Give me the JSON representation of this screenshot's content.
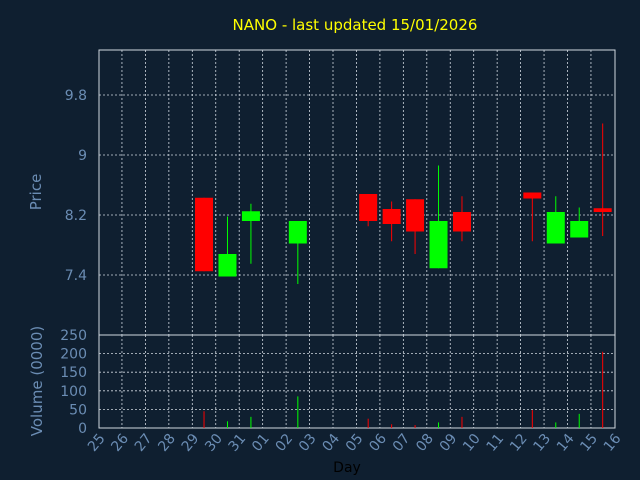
{
  "chart_data": {
    "type": "candlestick",
    "title": "NANO - last updated 15/01/2026",
    "xlabel": "Day",
    "ylabel": "Price",
    "y2label": "Volume (0000)",
    "x_ticks": [
      "25",
      "26",
      "27",
      "28",
      "29",
      "30",
      "31",
      "01",
      "02",
      "03",
      "04",
      "05",
      "06",
      "07",
      "08",
      "09",
      "10",
      "11",
      "12",
      "13",
      "14",
      "15",
      "16"
    ],
    "price_ticks": [
      7.4,
      8.2,
      9,
      9.8
    ],
    "price_tick_labels": [
      "7.4",
      "8.2",
      "9",
      "9.8"
    ],
    "ylim": [
      6.6,
      10.4
    ],
    "volume_ticks": [
      0,
      50,
      100,
      150,
      200,
      250
    ],
    "volume_tick_labels": [
      "0",
      "50",
      "100",
      "150",
      "200",
      "250"
    ],
    "volume_ylim": [
      0,
      250
    ],
    "grid": true,
    "colors": {
      "background": "#0f1f30",
      "text": "#6b8db4",
      "title": "#ffff00",
      "up": "#00ff00",
      "down": "#ff0000",
      "grid": "#d0d8e0"
    },
    "candles": [
      {
        "day": "29",
        "open": 8.43,
        "high": 8.43,
        "low": 7.45,
        "close": 7.45,
        "volume": 45
      },
      {
        "day": "30",
        "open": 7.38,
        "high": 8.18,
        "low": 7.38,
        "close": 7.68,
        "volume": 18
      },
      {
        "day": "31",
        "open": 8.12,
        "high": 8.35,
        "low": 7.55,
        "close": 8.25,
        "volume": 30
      },
      {
        "day": "02",
        "open": 7.82,
        "high": 8.12,
        "low": 7.28,
        "close": 8.12,
        "volume": 85
      },
      {
        "day": "05",
        "open": 8.48,
        "high": 8.48,
        "low": 8.05,
        "close": 8.12,
        "volume": 25
      },
      {
        "day": "06",
        "open": 8.28,
        "high": 8.38,
        "low": 7.85,
        "close": 8.08,
        "volume": 10
      },
      {
        "day": "07",
        "open": 8.41,
        "high": 8.41,
        "low": 7.68,
        "close": 7.98,
        "volume": 8
      },
      {
        "day": "08",
        "open": 7.49,
        "high": 8.86,
        "low": 7.49,
        "close": 8.12,
        "volume": 15
      },
      {
        "day": "09",
        "open": 8.24,
        "high": 8.45,
        "low": 7.85,
        "close": 7.98,
        "volume": 30
      },
      {
        "day": "12",
        "open": 8.5,
        "high": 8.5,
        "low": 7.85,
        "close": 8.42,
        "volume": 48
      },
      {
        "day": "13",
        "open": 7.82,
        "high": 8.45,
        "low": 7.82,
        "close": 8.24,
        "volume": 15
      },
      {
        "day": "14",
        "open": 7.9,
        "high": 8.3,
        "low": 7.9,
        "close": 8.12,
        "volume": 38
      },
      {
        "day": "15",
        "open": 8.29,
        "high": 9.42,
        "low": 7.92,
        "close": 8.24,
        "volume": 205
      }
    ]
  }
}
